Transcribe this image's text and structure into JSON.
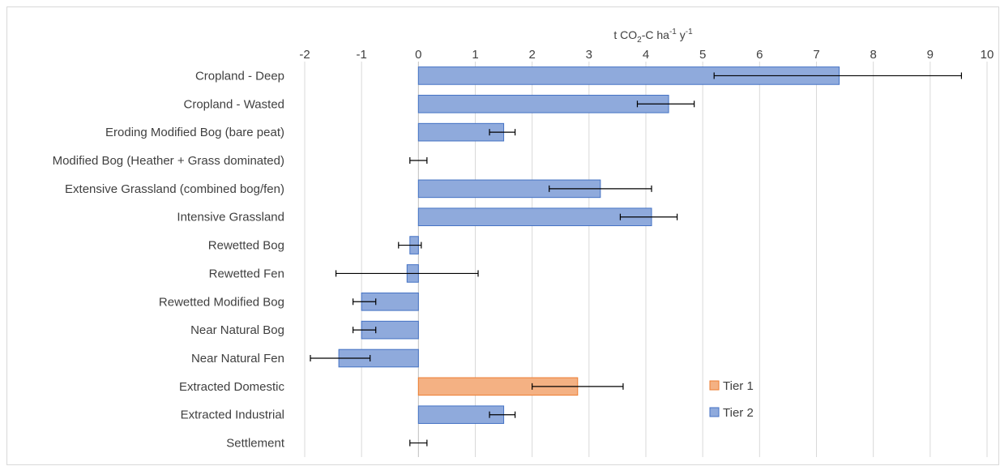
{
  "chart_data": {
    "type": "bar",
    "orientation": "horizontal",
    "xlabel": {
      "base": "t CO",
      "sub": "2",
      "mid": "-C ha",
      "sup1": "-1",
      "gap": " y",
      "sup2": "-1"
    },
    "xlim": [
      -2,
      10
    ],
    "xticks": [
      "-2",
      "-1",
      "0",
      "1",
      "2",
      "3",
      "4",
      "5",
      "6",
      "7",
      "8",
      "9",
      "10"
    ],
    "grid": "vertical",
    "legend_position": "right",
    "categories": [
      "Cropland  - Deep",
      "Cropland - Wasted",
      "Eroding Modified Bog (bare peat)",
      "Modified Bog (Heather + Grass dominated)",
      "Extensive Grassland (combined bog/fen)",
      "Intensive Grassland",
      "Rewetted Bog",
      "Rewetted Fen",
      "Rewetted Modified Bog",
      "Near Natural Bog",
      "Near Natural Fen",
      "Extracted Domestic",
      "Extracted Industrial",
      "Settlement"
    ],
    "values": [
      7.4,
      4.4,
      1.5,
      0.0,
      3.2,
      4.1,
      -0.15,
      -0.2,
      -1.0,
      -1.0,
      -1.4,
      2.8,
      1.5,
      0.0
    ],
    "error_low": [
      5.2,
      3.85,
      1.25,
      -0.15,
      2.3,
      3.55,
      -0.35,
      -1.45,
      -1.15,
      -1.15,
      -1.9,
      2.0,
      1.25,
      -0.15
    ],
    "error_high": [
      9.55,
      4.85,
      1.7,
      0.15,
      4.1,
      4.55,
      0.05,
      1.05,
      -0.75,
      -0.75,
      -0.85,
      3.6,
      1.7,
      0.15
    ],
    "tiers": [
      "Tier 2",
      "Tier 2",
      "Tier 2",
      "Tier 2",
      "Tier 2",
      "Tier 2",
      "Tier 2",
      "Tier 2",
      "Tier 2",
      "Tier 2",
      "Tier 2",
      "Tier 1",
      "Tier 2",
      "Tier 2"
    ],
    "legend": [
      {
        "name": "Tier 1",
        "color": "#f4b183",
        "edge": "#ed7d31"
      },
      {
        "name": "Tier 2",
        "color": "#8faadc",
        "edge": "#4472c4"
      }
    ],
    "grid_color": "#d9d9d9",
    "axis_color": "#bfbfbf",
    "error_color": "#000000"
  }
}
